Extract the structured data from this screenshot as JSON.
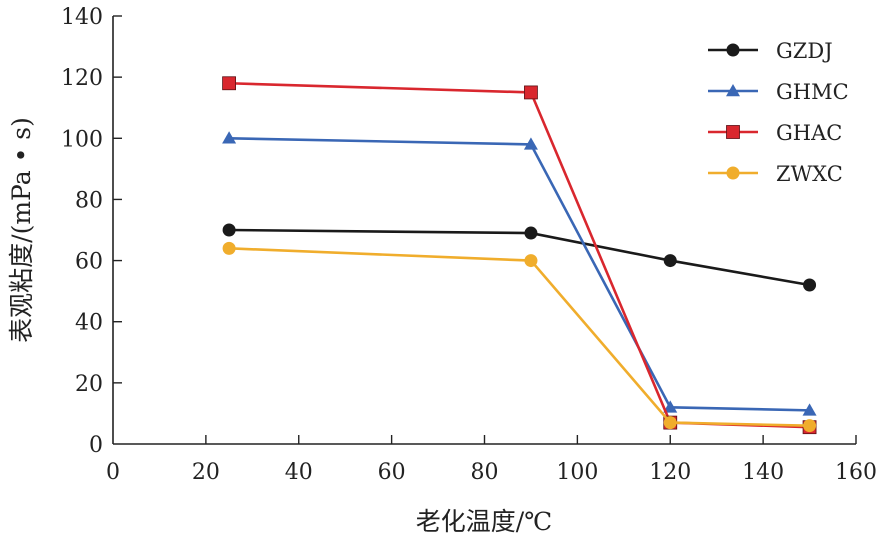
{
  "chart_data": {
    "type": "line",
    "title": "",
    "xlabel": "老化温度/℃",
    "ylabel": "表观粘度/(mPa • s)",
    "xlim": [
      0,
      160
    ],
    "ylim": [
      0,
      140
    ],
    "x_ticks": [
      "0",
      "20",
      "40",
      "60",
      "80",
      "100",
      "120",
      "140",
      "160"
    ],
    "y_ticks": [
      "0",
      "20",
      "40",
      "60",
      "80",
      "100",
      "120",
      "140"
    ],
    "grid": false,
    "legend_position": "top-right",
    "series": [
      {
        "name": "GZDJ",
        "color": "#1a1a1a",
        "marker": "circle",
        "x": [
          25,
          90,
          120,
          150
        ],
        "y": [
          70,
          69,
          60,
          52
        ]
      },
      {
        "name": "GHMC",
        "color": "#3a67b5",
        "marker": "triangle",
        "x": [
          25,
          90,
          120,
          150
        ],
        "y": [
          100,
          98,
          12,
          11
        ]
      },
      {
        "name": "GHAC",
        "color": "#d9272e",
        "marker": "square",
        "x": [
          25,
          90,
          120,
          150
        ],
        "y": [
          118,
          115,
          7,
          5.5
        ]
      },
      {
        "name": "ZWXC",
        "color": "#f0ad2c",
        "marker": "circle",
        "x": [
          25,
          90,
          120,
          150
        ],
        "y": [
          64,
          60,
          7,
          6
        ]
      }
    ]
  }
}
